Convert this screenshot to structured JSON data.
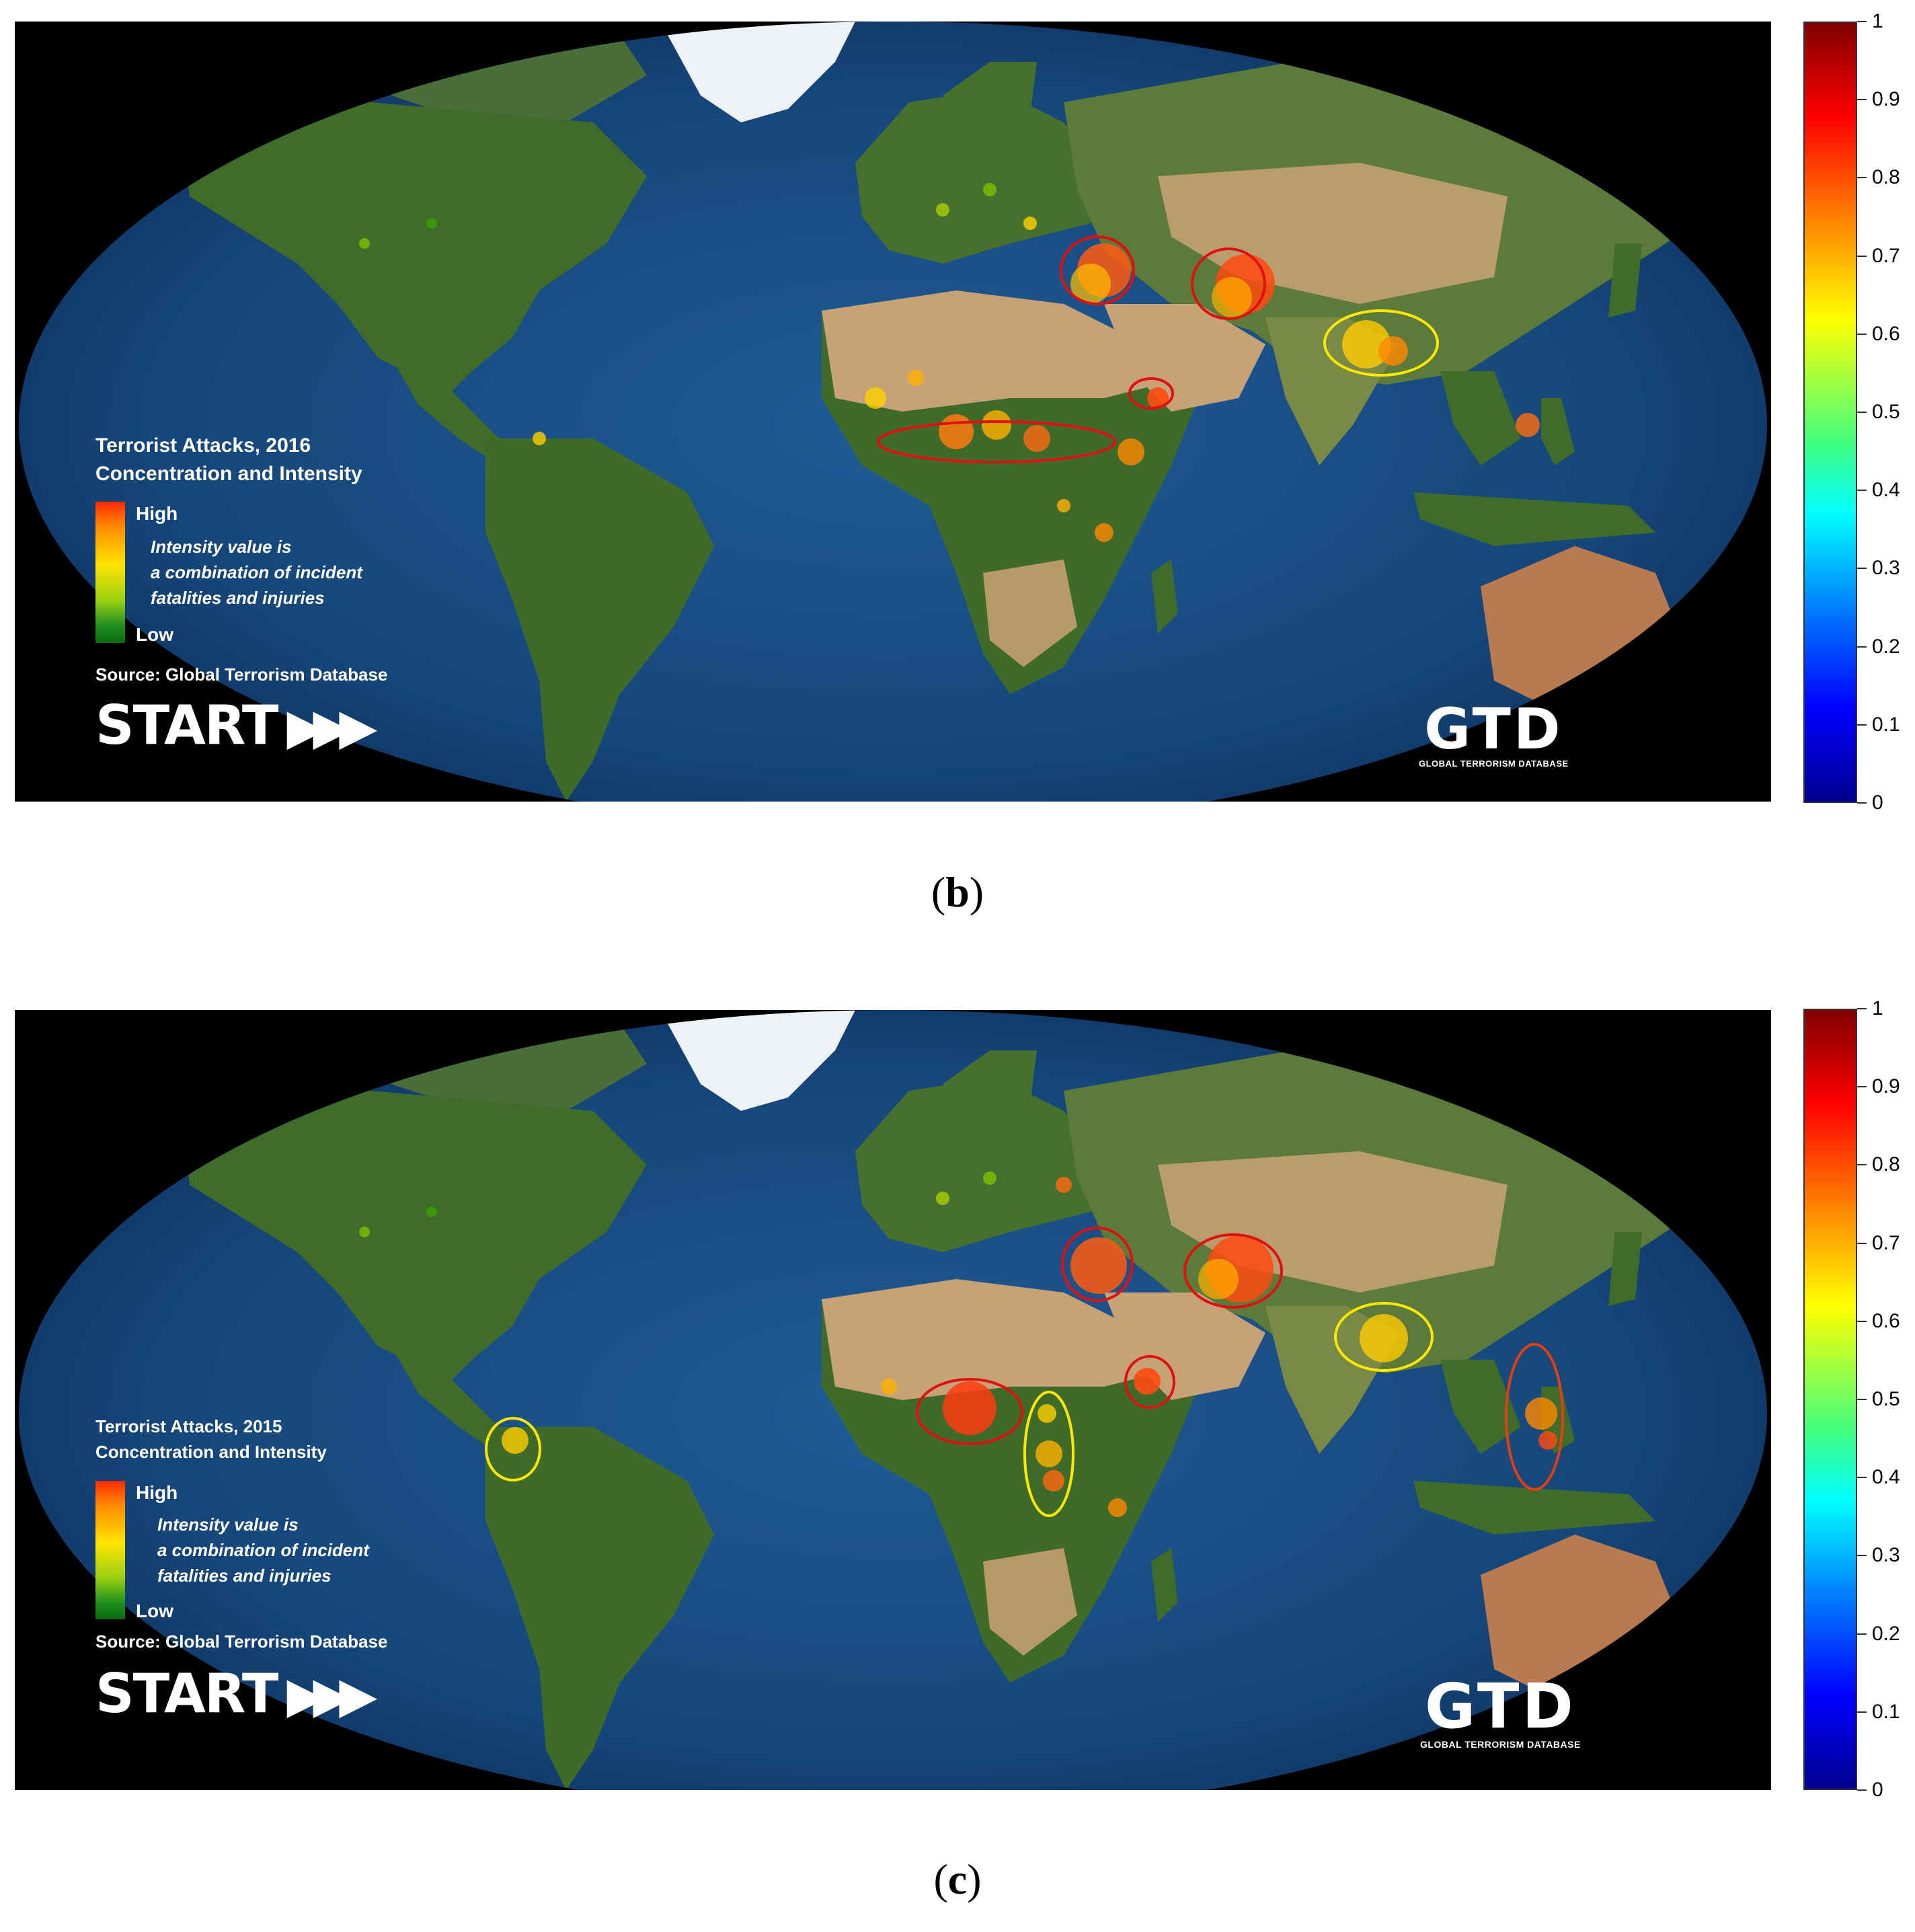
{
  "panels": [
    {
      "caption_letter": "b",
      "legend": {
        "title_line1": "Terrorist Attacks, 2016",
        "title_line2": "Concentration and Intensity",
        "high_label": "High",
        "low_label": "Low",
        "note_line1": "Intensity value is",
        "note_line2": "a combination of incident",
        "note_line3": "fatalities and injuries",
        "source": "Source: Global Terrorism Database"
      },
      "start_logo": "START",
      "gtd_logo": "GTD",
      "gtd_subtitle": "GLOBAL TERRORISM DATABASE",
      "highlight_regions": [
        {
          "region": "Middle East (Syria/Iraq)",
          "outline": "red"
        },
        {
          "region": "Afghanistan/Pakistan",
          "outline": "red"
        },
        {
          "region": "Northeast India/Bangladesh/Myanmar",
          "outline": "yellow"
        },
        {
          "region": "Yemen",
          "outline": "red"
        },
        {
          "region": "Sahel / Lake Chad band",
          "outline": "red"
        }
      ]
    },
    {
      "caption_letter": "c",
      "legend": {
        "title_line1": "Terrorist Attacks, 2015",
        "title_line2": "Concentration and Intensity",
        "high_label": "High",
        "low_label": "Low",
        "note_line1": "Intensity value is",
        "note_line2": "a combination of incident",
        "note_line3": "fatalities and injuries",
        "source": "Source: Global Terrorism Database"
      },
      "start_logo": "START",
      "gtd_logo": "GTD",
      "gtd_subtitle": "GLOBAL TERRORISM DATABASE",
      "highlight_regions": [
        {
          "region": "Middle East (Syria/Iraq)",
          "outline": "red"
        },
        {
          "region": "Afghanistan/Pakistan",
          "outline": "red"
        },
        {
          "region": "Northeast India/Bangladesh/Myanmar",
          "outline": "yellow"
        },
        {
          "region": "Yemen",
          "outline": "red"
        },
        {
          "region": "Nigeria",
          "outline": "red"
        },
        {
          "region": "Central Africa (CAR/DRC/South Sudan)",
          "outline": "yellow"
        },
        {
          "region": "Colombia",
          "outline": "yellow"
        },
        {
          "region": "Philippines",
          "outline": "red"
        }
      ]
    }
  ],
  "colorbar": {
    "ticks": [
      "0",
      "0.1",
      "0.2",
      "0.3",
      "0.4",
      "0.5",
      "0.6",
      "0.7",
      "0.8",
      "0.9",
      "1"
    ],
    "colormap": "jet"
  },
  "colors": {
    "ocean": "#1b4f86",
    "land": "#3d6b2a",
    "desert": "#c8a277",
    "ice": "#f4f6f8",
    "outline_red": "#e01010",
    "outline_yellow": "#ffe800"
  }
}
